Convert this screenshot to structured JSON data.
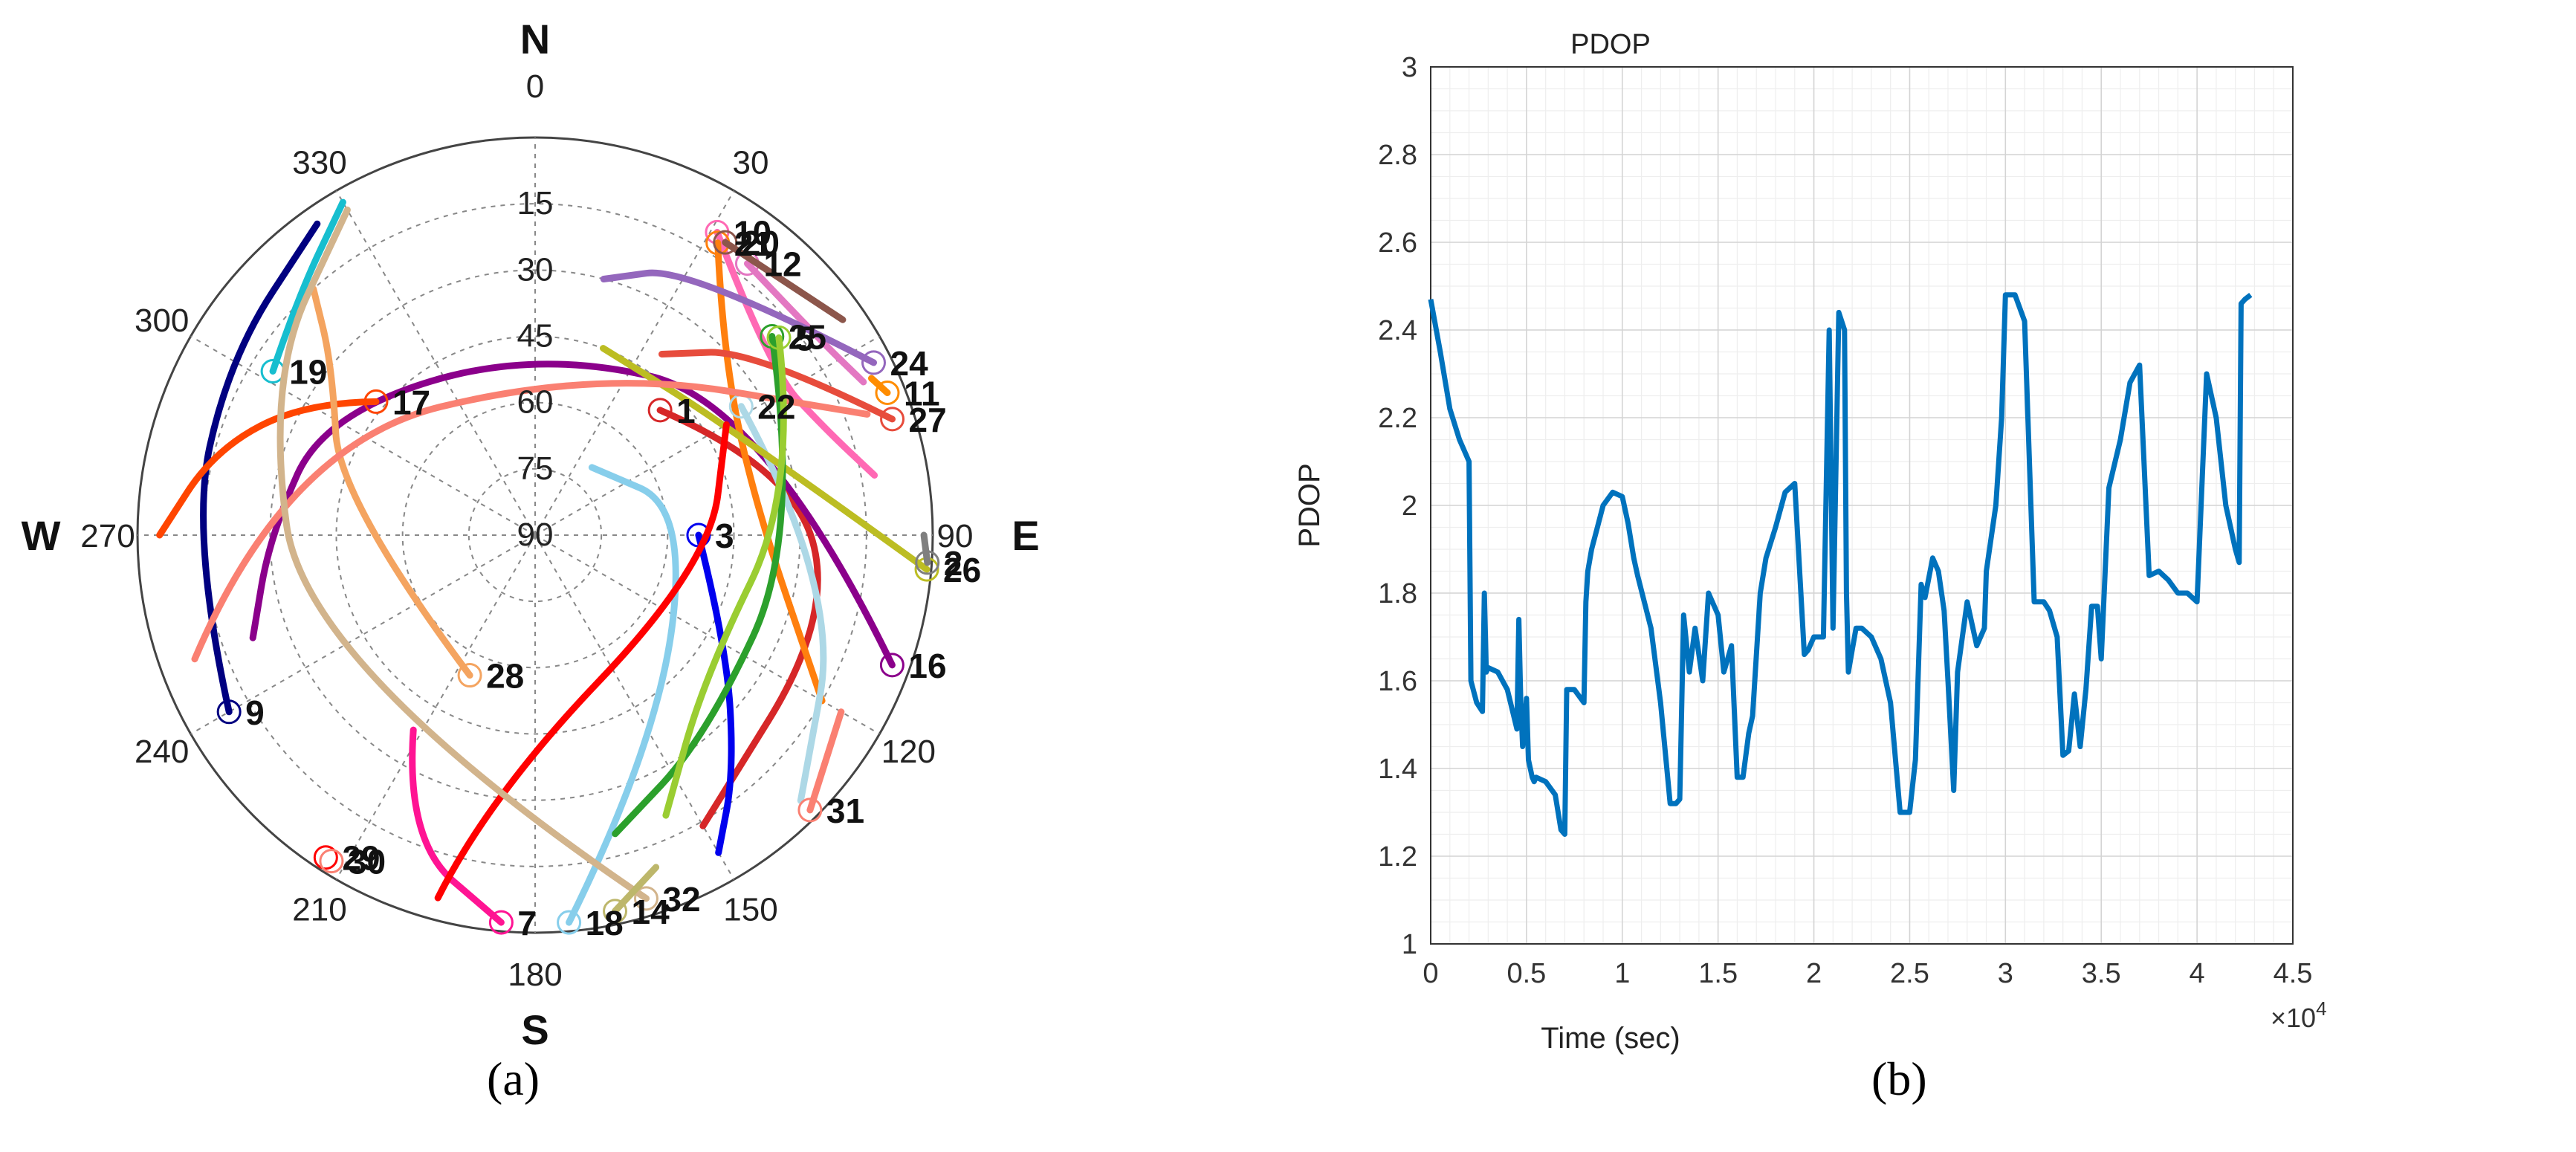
{
  "figure": {
    "panel_a_label": "(a)",
    "panel_b_label": "(b)"
  },
  "chart_data": [
    {
      "type": "scatter",
      "subtype": "skyplot",
      "cardinal_labels": {
        "N": "N",
        "E": "E",
        "S": "S",
        "W": "W"
      },
      "azimuth_ticks": [
        {
          "az": 0,
          "label": "0"
        },
        {
          "az": 30,
          "label": "30"
        },
        {
          "az": 90,
          "label": "90"
        },
        {
          "az": 120,
          "label": "120"
        },
        {
          "az": 150,
          "label": "150"
        },
        {
          "az": 180,
          "label": "180"
        },
        {
          "az": 210,
          "label": "210"
        },
        {
          "az": 240,
          "label": "240"
        },
        {
          "az": 270,
          "label": "270"
        },
        {
          "az": 300,
          "label": "300"
        },
        {
          "az": 330,
          "label": "330"
        }
      ],
      "elevation_ticks": [
        {
          "el": 15,
          "label": "15"
        },
        {
          "el": 30,
          "label": "30"
        },
        {
          "el": 45,
          "label": "45"
        },
        {
          "el": 60,
          "label": "60"
        },
        {
          "el": 75,
          "label": "75"
        },
        {
          "el": 90,
          "label": "90"
        }
      ],
      "grid": true,
      "satellites": [
        {
          "id": "1",
          "color": "#d62728",
          "marker": {
            "az": 45,
            "el": 50
          },
          "track": [
            [
              45,
              50
            ],
            [
              75,
              30
            ],
            [
              105,
              20
            ],
            [
              150,
              14
            ]
          ]
        },
        {
          "id": "3",
          "color": "#0000ee",
          "marker": {
            "az": 90,
            "el": 53
          },
          "track": [
            [
              90,
              53
            ],
            [
              120,
              40
            ],
            [
              140,
              20
            ],
            [
              150,
              7
            ]
          ]
        },
        {
          "id": "7",
          "color": "#ff1493",
          "marker": {
            "az": 185,
            "el": 2
          },
          "track": [
            [
              212,
              38
            ],
            [
              203,
              15
            ],
            [
              185,
              2
            ]
          ]
        },
        {
          "id": "9",
          "color": "#000080",
          "marker": {
            "az": 240,
            "el": 10
          },
          "track": [
            [
              240,
              10
            ],
            [
              270,
              12
            ],
            [
              300,
              10
            ],
            [
              325,
              4
            ]
          ]
        },
        {
          "id": "10",
          "color": "#ff69b4",
          "marker": {
            "az": 31,
            "el": 10
          },
          "track": [
            [
              31,
              10
            ],
            [
              55,
              25
            ],
            [
              70,
              20
            ],
            [
              80,
              12
            ]
          ]
        },
        {
          "id": "12",
          "color": "#e377c2",
          "marker": {
            "az": 38,
            "el": 12
          },
          "track": [
            [
              38,
              12
            ],
            [
              55,
              12
            ],
            [
              65,
              8
            ]
          ]
        },
        {
          "id": "16",
          "color": "#8b008b",
          "marker": {
            "az": 110,
            "el": 4
          },
          "track": [
            [
              110,
              4
            ],
            [
              60,
              30
            ],
            [
              0,
              48
            ],
            [
              300,
              35
            ],
            [
              270,
              30
            ],
            [
              250,
              22
            ]
          ]
        },
        {
          "id": "17",
          "color": "#ff4500",
          "marker": {
            "az": 310,
            "el": 43
          },
          "track": [
            [
              310,
              43
            ],
            [
              300,
              30
            ],
            [
              285,
              15
            ],
            [
              270,
              5
            ]
          ]
        },
        {
          "id": "18",
          "color": "#87ceeb",
          "marker": {
            "az": 175,
            "el": 2
          },
          "track": [
            [
              175,
              2
            ],
            [
              150,
              35
            ],
            [
              80,
              55
            ],
            [
              40,
              70
            ]
          ]
        },
        {
          "id": "19",
          "color": "#17becf",
          "marker": {
            "az": 302,
            "el": 20
          },
          "track": [
            [
              302,
              20
            ],
            [
              315,
              14
            ],
            [
              330,
              3
            ]
          ]
        },
        {
          "id": "21",
          "color": "#ff7f0e",
          "marker": {
            "az": 32,
            "el": 12
          },
          "track": [
            [
              32,
              12
            ],
            [
              45,
              30
            ],
            [
              80,
              40
            ],
            [
              120,
              15
            ]
          ]
        },
        {
          "id": "22",
          "color": "#add8e6",
          "marker": {
            "az": 58,
            "el": 35
          },
          "track": [
            [
              58,
              35
            ],
            [
              100,
              20
            ],
            [
              135,
              5
            ]
          ]
        },
        {
          "id": "24",
          "color": "#9467bd",
          "marker": {
            "az": 63,
            "el": 4
          },
          "track": [
            [
              63,
              4
            ],
            [
              30,
              20
            ],
            [
              15,
              30
            ]
          ]
        },
        {
          "id": "26",
          "color": "#bcbd22",
          "marker": {
            "az": 95,
            "el": 1
          },
          "track": [
            [
              95,
              1
            ],
            [
              60,
              40
            ],
            [
              20,
              45
            ]
          ]
        },
        {
          "id": "27",
          "color": "#e74c3c",
          "marker": {
            "az": 72,
            "el": 5
          },
          "track": [
            [
              72,
              5
            ],
            [
              50,
              25
            ],
            [
              35,
              40
            ]
          ]
        },
        {
          "id": "28",
          "color": "#f4a460",
          "marker": {
            "az": 205,
            "el": 55
          },
          "track": [
            [
              205,
              55
            ],
            [
              280,
              45
            ],
            [
              310,
              30
            ],
            [
              318,
              15
            ]
          ]
        },
        {
          "id": "29",
          "color": "#ff0000",
          "marker": {
            "az": 213,
            "el": 3
          },
          "track": [
            [
              195,
              5
            ],
            [
              190,
              30
            ],
            [
              100,
              50
            ],
            [
              60,
              40
            ]
          ]
        },
        {
          "id": "30",
          "color": "#fa8072",
          "marker": {
            "az": 212,
            "el": 3
          },
          "track": [
            [
              250,
              8
            ],
            [
              290,
              30
            ],
            [
              20,
              50
            ],
            [
              70,
              10
            ]
          ]
        },
        {
          "id": "31",
          "color": "#fa8072",
          "marker": {
            "az": 135,
            "el": 2
          },
          "track": [
            [
              135,
              2
            ],
            [
              120,
              10
            ]
          ]
        },
        {
          "id": "32",
          "color": "#d2b48c",
          "marker": {
            "az": 163,
            "el": 4
          },
          "track": [
            [
              163,
              4
            ],
            [
              240,
              30
            ],
            [
              300,
              20
            ],
            [
              330,
              5
            ]
          ]
        },
        {
          "id": "25",
          "color": "#2ca02c",
          "marker": {
            "az": 50,
            "el": 20
          },
          "track": [
            [
              50,
              20
            ],
            [
              90,
              30
            ],
            [
              140,
              30
            ],
            [
              165,
              20
            ]
          ]
        },
        {
          "id": "5",
          "color": "#9acd32",
          "marker": {
            "az": 51,
            "el": 19
          },
          "track": [
            [
              51,
              19
            ],
            [
              80,
              30
            ],
            [
              130,
              40
            ],
            [
              155,
              20
            ]
          ]
        },
        {
          "id": "20",
          "color": "#8c564b",
          "marker": {
            "az": 33,
            "el": 11
          },
          "track": [
            [
              33,
              11
            ],
            [
              55,
              5
            ]
          ]
        },
        {
          "id": "2",
          "color": "#7f7f7f",
          "marker": {
            "az": 94,
            "el": 1
          },
          "track": [
            [
              94,
              1
            ],
            [
              90,
              2
            ]
          ]
        },
        {
          "id": "14",
          "color": "#bdb76b",
          "marker": {
            "az": 168,
            "el": 3
          },
          "track": [
            [
              168,
              3
            ],
            [
              160,
              10
            ]
          ]
        },
        {
          "id": "11",
          "color": "#ff8c00",
          "marker": {
            "az": 68,
            "el": 4
          },
          "track": [
            [
              68,
              4
            ],
            [
              65,
              6
            ]
          ]
        }
      ]
    },
    {
      "type": "line",
      "title": "PDOP",
      "xlabel": "Time (sec)",
      "ylabel": "PDOP",
      "x_multiplier": "×10^4",
      "xlim": [
        0,
        45000
      ],
      "ylim": [
        1,
        3
      ],
      "xticks": [
        "0",
        "0.5",
        "1",
        "1.5",
        "2",
        "2.5",
        "3",
        "3.5",
        "4",
        "4.5"
      ],
      "yticks": [
        "1",
        "1.2",
        "1.4",
        "1.6",
        "1.8",
        "2",
        "2.2",
        "2.4",
        "2.6",
        "2.8",
        "3"
      ],
      "grid": true,
      "series": [
        {
          "color": "#0072bd",
          "x": [
            0,
            500,
            1000,
            1500,
            2000,
            2100,
            2400,
            2700,
            2800,
            2900,
            3000,
            3500,
            4000,
            4500,
            4600,
            4700,
            4800,
            5000,
            5100,
            5300,
            5400,
            5500,
            6000,
            6500,
            6800,
            7000,
            7100,
            7500,
            8000,
            8100,
            8200,
            8400,
            8700,
            9000,
            9500,
            10000,
            10300,
            10600,
            10800,
            11500,
            12000,
            12500,
            12800,
            13000,
            13200,
            13500,
            13800,
            14200,
            14500,
            15000,
            15300,
            15500,
            15700,
            16000,
            16300,
            16600,
            16800,
            17200,
            17500,
            18000,
            18500,
            19000,
            19500,
            19700,
            20000,
            20500,
            20800,
            21000,
            21300,
            21600,
            21700,
            21800,
            22000,
            22200,
            22500,
            23000,
            23500,
            24000,
            24500,
            25000,
            25300,
            25600,
            25800,
            26200,
            26500,
            26800,
            27000,
            27300,
            27500,
            28000,
            28500,
            28900,
            29000,
            29500,
            29800,
            30000,
            30500,
            31000,
            31500,
            32000,
            32300,
            32700,
            33000,
            33300,
            33600,
            33900,
            34200,
            34500,
            34800,
            35000,
            35400,
            36000,
            36500,
            37000,
            37500,
            38000,
            38500,
            39000,
            39500,
            40000,
            40500,
            41000,
            41500,
            42000,
            42200,
            42300,
            42500,
            42800
          ],
          "y": [
            2.47,
            2.35,
            2.22,
            2.15,
            2.1,
            1.6,
            1.55,
            1.53,
            1.8,
            1.62,
            1.63,
            1.62,
            1.58,
            1.49,
            1.74,
            1.55,
            1.45,
            1.56,
            1.42,
            1.38,
            1.37,
            1.38,
            1.37,
            1.34,
            1.26,
            1.25,
            1.58,
            1.58,
            1.55,
            1.78,
            1.85,
            1.9,
            1.95,
            2.0,
            2.03,
            2.02,
            1.96,
            1.88,
            1.84,
            1.72,
            1.55,
            1.32,
            1.32,
            1.33,
            1.75,
            1.62,
            1.72,
            1.6,
            1.8,
            1.75,
            1.62,
            1.65,
            1.68,
            1.38,
            1.38,
            1.48,
            1.52,
            1.8,
            1.88,
            1.95,
            2.03,
            2.05,
            1.66,
            1.67,
            1.7,
            1.7,
            2.4,
            1.72,
            2.44,
            2.4,
            1.8,
            1.62,
            1.67,
            1.72,
            1.72,
            1.7,
            1.65,
            1.55,
            1.3,
            1.3,
            1.42,
            1.82,
            1.79,
            1.88,
            1.85,
            1.76,
            1.6,
            1.35,
            1.62,
            1.78,
            1.68,
            1.72,
            1.85,
            2.0,
            2.2,
            2.48,
            2.48,
            2.42,
            1.78,
            1.78,
            1.76,
            1.7,
            1.43,
            1.44,
            1.57,
            1.45,
            1.58,
            1.77,
            1.77,
            1.65,
            2.04,
            2.15,
            2.28,
            2.32,
            1.84,
            1.85,
            1.83,
            1.8,
            1.8,
            1.78,
            2.3,
            2.2,
            2.0,
            1.9,
            1.87,
            2.46,
            2.47,
            2.48
          ]
        }
      ]
    }
  ]
}
